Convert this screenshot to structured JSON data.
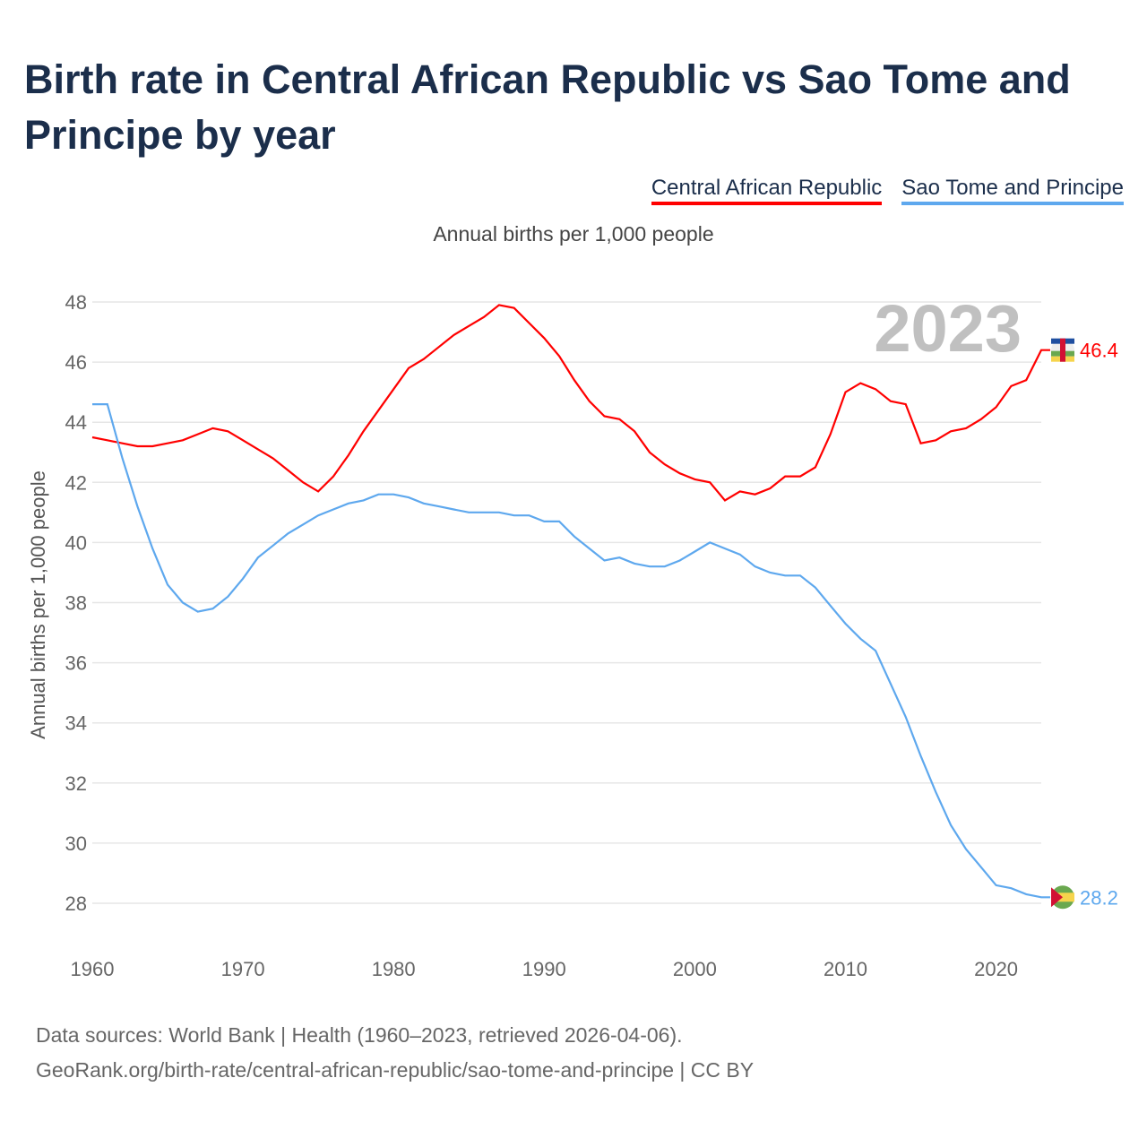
{
  "title": "Birth rate in Central African Republic vs Sao Tome and Principe by year",
  "subtitle": "Annual births per 1,000 people",
  "footer": {
    "line1": "Data sources: World Bank | Health (1960–2023, retrieved 2026-04-06).",
    "line2": "GeoRank.org/birth-rate/central-african-republic/sao-tome-and-principe | CC BY"
  },
  "chart_data": {
    "type": "line",
    "title": "Birth rate in Central African Republic vs Sao Tome and Principe by year",
    "xlabel": "",
    "ylabel": "Annual births per 1,000 people",
    "xlim": [
      1960,
      2023
    ],
    "ylim": [
      28,
      48
    ],
    "xticks": [
      1960,
      1970,
      1980,
      1990,
      2000,
      2010,
      2020
    ],
    "yticks": [
      28,
      30,
      32,
      34,
      36,
      38,
      40,
      42,
      44,
      46,
      48
    ],
    "year_label": "2023",
    "legend": "top-right",
    "x_start": 1960,
    "series": [
      {
        "name": "Central African Republic",
        "color": "#ff0000",
        "end_label": "46.4",
        "values": [
          43.5,
          43.4,
          43.3,
          43.2,
          43.2,
          43.3,
          43.4,
          43.6,
          43.8,
          43.7,
          43.4,
          43.1,
          42.8,
          42.4,
          42.0,
          41.7,
          42.2,
          42.9,
          43.7,
          44.4,
          45.1,
          45.8,
          46.1,
          46.5,
          46.9,
          47.2,
          47.5,
          47.9,
          47.8,
          47.3,
          46.8,
          46.2,
          45.4,
          44.7,
          44.2,
          44.1,
          43.7,
          43.0,
          42.6,
          42.3,
          42.1,
          42.0,
          41.4,
          41.7,
          41.6,
          41.8,
          42.2,
          42.2,
          42.5,
          43.6,
          45.0,
          45.3,
          45.1,
          44.7,
          44.6,
          43.3,
          43.4,
          43.7,
          43.8,
          44.1,
          44.5,
          45.2,
          45.4,
          46.4
        ]
      },
      {
        "name": "Sao Tome and Principe",
        "color": "#5ea8ee",
        "end_label": "28.2",
        "values": [
          44.6,
          44.6,
          42.8,
          41.2,
          39.8,
          38.6,
          38.0,
          37.7,
          37.8,
          38.2,
          38.8,
          39.5,
          39.9,
          40.3,
          40.6,
          40.9,
          41.1,
          41.3,
          41.4,
          41.6,
          41.6,
          41.5,
          41.3,
          41.2,
          41.1,
          41.0,
          41.0,
          41.0,
          40.9,
          40.9,
          40.7,
          40.7,
          40.2,
          39.8,
          39.4,
          39.5,
          39.3,
          39.2,
          39.2,
          39.4,
          39.7,
          40.0,
          39.8,
          39.6,
          39.2,
          39.0,
          38.9,
          38.9,
          38.5,
          37.9,
          37.3,
          36.8,
          36.4,
          35.3,
          34.2,
          32.9,
          31.7,
          30.6,
          29.8,
          29.2,
          28.6,
          28.5,
          28.3,
          28.2
        ]
      }
    ]
  }
}
